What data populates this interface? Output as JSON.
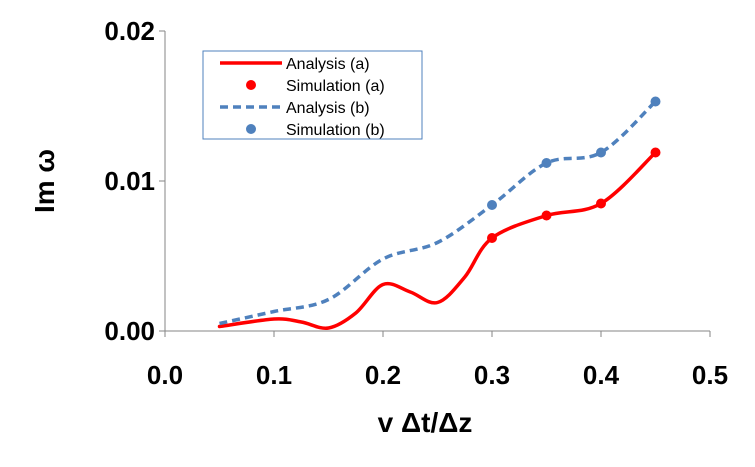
{
  "chart_data": {
    "type": "line",
    "title": "",
    "xlabel": "v Δt/Δz",
    "ylabel": "Im ω",
    "xlim": [
      0.0,
      0.5
    ],
    "ylim": [
      0.0,
      0.02
    ],
    "x_ticks": [
      "0.0",
      "0.1",
      "0.2",
      "0.3",
      "0.4",
      "0.5"
    ],
    "y_ticks": [
      "0.00",
      "0.01",
      "0.02"
    ],
    "legend_position": "top-left",
    "series": [
      {
        "name": "Analysis (a)",
        "style": "solid-line",
        "color": "#ff0000",
        "x": [
          0.05,
          0.1,
          0.125,
          0.15,
          0.175,
          0.2,
          0.225,
          0.25,
          0.275,
          0.3,
          0.35,
          0.4,
          0.45
        ],
        "values": [
          0.0003,
          0.0008,
          0.0006,
          0.0002,
          0.0012,
          0.0031,
          0.0026,
          0.0019,
          0.0036,
          0.0062,
          0.0077,
          0.0085,
          0.0119
        ]
      },
      {
        "name": "Simulation (a)",
        "style": "markers",
        "color": "#ff0000",
        "x": [
          0.3,
          0.35,
          0.4,
          0.45
        ],
        "values": [
          0.0062,
          0.0077,
          0.0085,
          0.0119
        ]
      },
      {
        "name": "Analysis (b)",
        "style": "dashed-line",
        "color": "#4f81bd",
        "x": [
          0.05,
          0.1,
          0.15,
          0.2,
          0.25,
          0.3,
          0.35,
          0.4,
          0.45
        ],
        "values": [
          0.0005,
          0.0013,
          0.0021,
          0.0048,
          0.0059,
          0.0084,
          0.0112,
          0.0119,
          0.0153
        ]
      },
      {
        "name": "Simulation (b)",
        "style": "markers",
        "color": "#4f81bd",
        "x": [
          0.3,
          0.35,
          0.4,
          0.45
        ],
        "values": [
          0.0084,
          0.0112,
          0.0119,
          0.0153
        ]
      }
    ]
  }
}
